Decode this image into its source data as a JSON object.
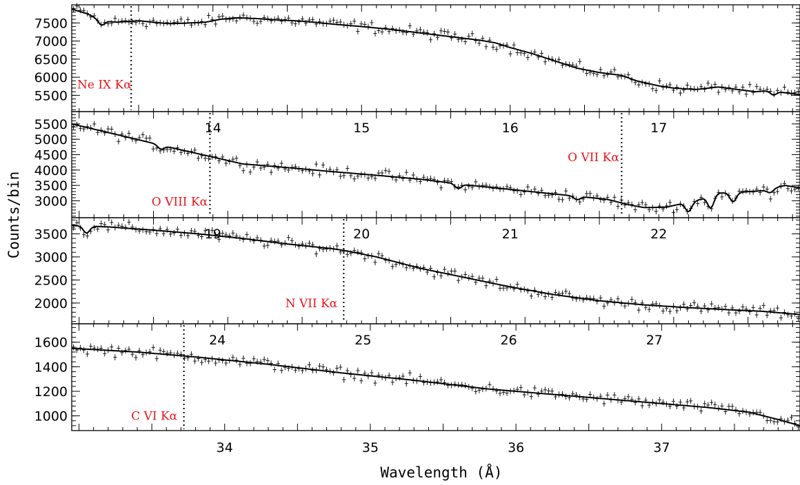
{
  "chart_data": {
    "type": "scatter",
    "xlabel": "Wavelength (Å)",
    "ylabel": "Counts/bin",
    "title": "",
    "colors": {
      "data": "#000000",
      "model": "#000000",
      "absorption_model": "#4a5cc8",
      "line_labels": "#e8141c"
    },
    "panels": [
      {
        "xlim": [
          13.05,
          17.95
        ],
        "ylim": [
          5050,
          8000
        ],
        "yticks": [
          5500,
          6000,
          6500,
          7000,
          7500
        ],
        "xticks": [],
        "model_anchors": [
          [
            13.05,
            7880
          ],
          [
            13.15,
            7760
          ],
          [
            13.25,
            7560
          ],
          [
            13.35,
            7520
          ],
          [
            13.5,
            7560
          ],
          [
            13.6,
            7520
          ],
          [
            13.7,
            7480
          ],
          [
            13.8,
            7490
          ],
          [
            13.95,
            7520
          ],
          [
            14.05,
            7600
          ],
          [
            14.15,
            7640
          ],
          [
            14.3,
            7620
          ],
          [
            14.4,
            7590
          ],
          [
            14.6,
            7550
          ],
          [
            14.8,
            7470
          ],
          [
            15.0,
            7400
          ],
          [
            15.2,
            7320
          ],
          [
            15.4,
            7220
          ],
          [
            15.6,
            7120
          ],
          [
            15.8,
            7020
          ],
          [
            15.9,
            6950
          ],
          [
            16.0,
            6820
          ],
          [
            16.15,
            6650
          ],
          [
            16.3,
            6450
          ],
          [
            16.45,
            6250
          ],
          [
            16.6,
            6130
          ],
          [
            16.75,
            6050
          ],
          [
            16.85,
            5900
          ],
          [
            17.0,
            5760
          ],
          [
            17.1,
            5700
          ],
          [
            17.25,
            5660
          ],
          [
            17.4,
            5730
          ],
          [
            17.55,
            5650
          ],
          [
            17.65,
            5600
          ],
          [
            17.75,
            5630
          ],
          [
            17.85,
            5570
          ],
          [
            17.95,
            5520
          ]
        ],
        "absorption_dips": [
          {
            "x": 13.25,
            "depth": 120
          },
          {
            "x": 17.77,
            "depth": 110
          }
        ],
        "lines": [
          {
            "x": 13.45,
            "label": "Ne IX Kα",
            "label_x": 13.05,
            "label_y": 5800
          }
        ]
      },
      {
        "xlim": [
          18.95,
          23.85
        ],
        "ylim": [
          2450,
          5900
        ],
        "yticks": [
          3000,
          3500,
          4000,
          4500,
          5000,
          5500
        ],
        "xticks": [
          {
            "v": 19.9,
            "label": "14"
          },
          {
            "v": 20.9,
            "label": "15"
          },
          {
            "v": 21.9,
            "label": "16"
          },
          {
            "v": 22.9,
            "label": "17"
          }
        ],
        "model_anchors": [
          [
            18.95,
            5500
          ],
          [
            19.3,
            5100
          ],
          [
            19.6,
            4750
          ],
          [
            19.9,
            4420
          ],
          [
            20.1,
            4200
          ],
          [
            20.4,
            4080
          ],
          [
            20.7,
            3950
          ],
          [
            21.0,
            3830
          ],
          [
            21.3,
            3700
          ],
          [
            21.6,
            3520
          ],
          [
            21.9,
            3370
          ],
          [
            22.1,
            3270
          ],
          [
            22.3,
            3170
          ],
          [
            22.55,
            3050
          ],
          [
            22.7,
            2870
          ],
          [
            22.8,
            2780
          ],
          [
            22.95,
            2790
          ],
          [
            23.05,
            2900
          ],
          [
            23.15,
            3000
          ],
          [
            23.3,
            3250
          ],
          [
            23.45,
            3280
          ],
          [
            23.6,
            3330
          ],
          [
            23.75,
            3500
          ],
          [
            23.85,
            3420
          ]
        ],
        "absorption_dips": [
          {
            "x": 19.55,
            "depth": 130
          },
          {
            "x": 21.55,
            "depth": 150
          },
          {
            "x": 22.35,
            "depth": 110
          },
          {
            "x": 23.1,
            "depth": 300
          },
          {
            "x": 23.25,
            "depth": 400
          },
          {
            "x": 23.4,
            "depth": 300
          },
          {
            "x": 23.65,
            "depth": 120
          }
        ],
        "lines": [
          {
            "x": 19.88,
            "label": "O VIII Kα",
            "label_x": 19.45,
            "label_y": 2980
          },
          {
            "x": 22.65,
            "label": "O VII Kα",
            "label_x": 22.25,
            "label_y": 4420
          }
        ]
      },
      {
        "xlim": [
          23.95,
          28.85
        ],
        "ylim": [
          1550,
          3850
        ],
        "yticks": [
          2000,
          2500,
          3000,
          3500
        ],
        "xticks": [
          {
            "v": 24.9,
            "label": "19"
          },
          {
            "v": 25.9,
            "label": "20"
          },
          {
            "v": 26.9,
            "label": "21"
          },
          {
            "v": 27.9,
            "label": "22"
          }
        ],
        "model_anchors": [
          [
            23.95,
            3680
          ],
          [
            24.2,
            3650
          ],
          [
            24.5,
            3580
          ],
          [
            24.8,
            3500
          ],
          [
            25.1,
            3400
          ],
          [
            25.4,
            3280
          ],
          [
            25.7,
            3180
          ],
          [
            25.8,
            3130
          ],
          [
            26.0,
            3000
          ],
          [
            26.3,
            2750
          ],
          [
            26.6,
            2550
          ],
          [
            26.9,
            2350
          ],
          [
            27.2,
            2180
          ],
          [
            27.5,
            2050
          ],
          [
            27.8,
            1960
          ],
          [
            28.1,
            1900
          ],
          [
            28.4,
            1850
          ],
          [
            28.6,
            1820
          ],
          [
            28.85,
            1750
          ]
        ],
        "absorption_dips": [
          {
            "x": 24.05,
            "depth": 150
          }
        ],
        "lines": [
          {
            "x": 25.78,
            "label": "N VII Kα",
            "label_x": 25.35,
            "label_y": 2000
          }
        ]
      },
      {
        "xlim": [
          32.95,
          37.95
        ],
        "ylim": [
          880,
          1750
        ],
        "yticks": [
          1000,
          1200,
          1400,
          1600
        ],
        "xticks": [
          {
            "v": 33.95,
            "label": "24"
          },
          {
            "v": 34.95,
            "label": "25"
          },
          {
            "v": 35.95,
            "label": "26"
          },
          {
            "v": 36.95,
            "label": "27"
          }
        ],
        "xticks_bottom": [
          {
            "v": 34,
            "label": "34"
          },
          {
            "v": 35,
            "label": "35"
          },
          {
            "v": 36,
            "label": "36"
          },
          {
            "v": 37,
            "label": "37"
          }
        ],
        "model_anchors": [
          [
            32.95,
            1550
          ],
          [
            33.4,
            1520
          ],
          [
            33.8,
            1480
          ],
          [
            34.3,
            1420
          ],
          [
            34.8,
            1350
          ],
          [
            35.3,
            1290
          ],
          [
            35.8,
            1220
          ],
          [
            36.3,
            1170
          ],
          [
            36.8,
            1120
          ],
          [
            37.3,
            1070
          ],
          [
            37.6,
            1030
          ],
          [
            37.8,
            970
          ],
          [
            37.95,
            920
          ]
        ],
        "absorption_dips": [],
        "lines": [
          {
            "x": 33.72,
            "label": "C VI Kα",
            "label_x": 33.32,
            "label_y": 1000
          }
        ]
      }
    ]
  }
}
